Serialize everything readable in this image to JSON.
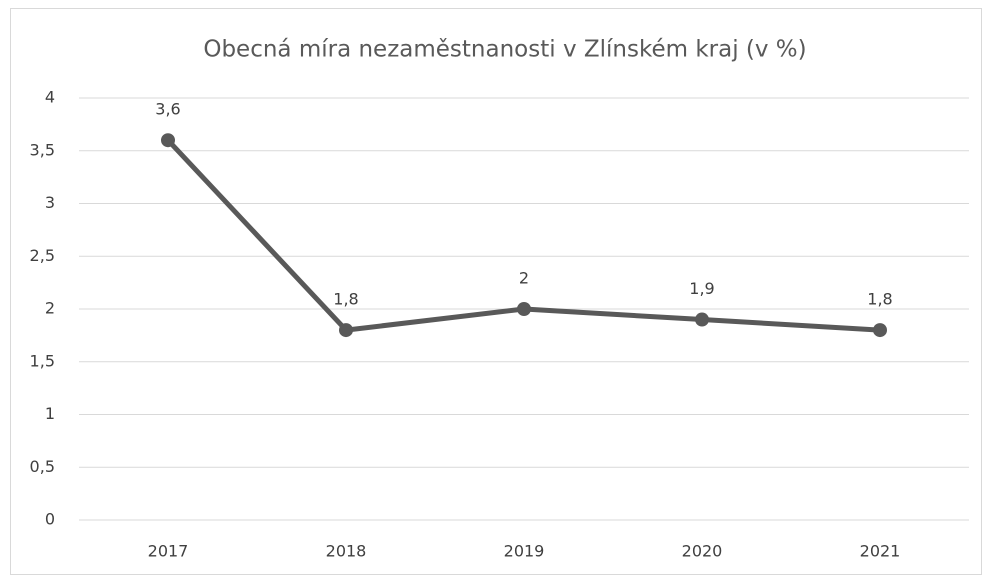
{
  "chart_data": {
    "type": "line",
    "title": "Obecná míra nezaměstnanosti v Zlínském kraj (v %)",
    "categories": [
      "2017",
      "2018",
      "2019",
      "2020",
      "2021"
    ],
    "series": [
      {
        "name": "Obecná míra nezaměstnanosti",
        "color": "#595959",
        "values": [
          3.6,
          1.8,
          2,
          1.9,
          1.8
        ],
        "value_labels": [
          "3,6",
          "1,8",
          "2",
          "1,9",
          "1,8"
        ]
      }
    ],
    "ylim": [
      0,
      4
    ],
    "yticks": [
      0,
      {
        "value": 0.5,
        "label": "0,5"
      },
      1,
      {
        "value": 1.5,
        "label": "1,5"
      },
      2,
      {
        "value": 2.5,
        "label": "2,5"
      },
      3,
      {
        "value": 3.5,
        "label": "3,5"
      },
      4
    ],
    "grid": true
  }
}
